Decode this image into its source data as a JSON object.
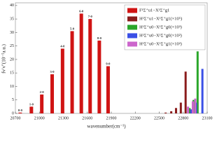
{
  "chart_data": {
    "type": "bar",
    "x_label": "wavenumber(cm⁻¹)",
    "y_label": "fv′v″(10⁻⁵a.u.)",
    "xlim": [
      20700,
      23100
    ],
    "xticks": [
      20700,
      21000,
      21300,
      21600,
      21900,
      22200,
      22500,
      22800,
      23100
    ],
    "ylim": [
      0,
      41
    ],
    "yticks": [
      0,
      5,
      10,
      15,
      20,
      25,
      30,
      35,
      40
    ],
    "series": [
      {
        "name": "F¹Σ⁺u1−X¹Σ⁺g1",
        "color": "#d01414",
        "x": [
          20760,
          20900,
          21030,
          21160,
          21290,
          21410,
          21525,
          21635,
          21750,
          21860
        ],
        "values": [
          0.3,
          2.5,
          7,
          14.5,
          24,
          30.5,
          37,
          35,
          27,
          17.5
        ],
        "labels": [
          "0-0",
          "1-0",
          "2-0",
          "3-0",
          "4-0",
          "5-0",
          "6-0",
          "7-0",
          "8-0",
          "9-0"
        ]
      },
      {
        "name": "H¹Σ⁺u1−X¹Σ⁺g1(×10⁵)",
        "color": "#8b1c1c",
        "x": [
          22580,
          22650,
          22710,
          22770,
          22830
        ],
        "values": [
          0.3,
          0.8,
          2,
          4,
          15.5
        ]
      },
      {
        "name": "H¹Σ⁺u0−X¹Σ⁺g0(×10³)",
        "color": "#2aa62a",
        "x": [
          22880,
          22930,
          22980
        ],
        "values": [
          2,
          5,
          23
        ]
      },
      {
        "name": "H¹Σ⁺u0−X¹Σ⁺g0(×10²)",
        "color": "#3a4fe6",
        "x": [
          22900,
          22960,
          23040
        ],
        "values": [
          1.5,
          4,
          16.5
        ]
      },
      {
        "name": "H¹Σ⁺u0−X¹Σ⁺g1(×10²)",
        "color": "#cc66cc",
        "x": [
          22860,
          22920,
          22950
        ],
        "values": [
          2.5,
          4.5,
          5.5
        ]
      }
    ],
    "legend": "upper right"
  }
}
